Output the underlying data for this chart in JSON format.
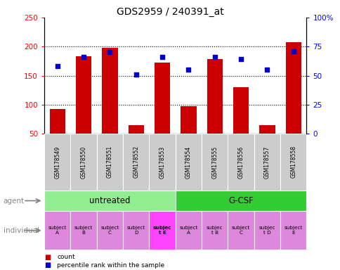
{
  "title": "GDS2959 / 240391_at",
  "samples": [
    "GSM178549",
    "GSM178550",
    "GSM178551",
    "GSM178552",
    "GSM178553",
    "GSM178554",
    "GSM178555",
    "GSM178556",
    "GSM178557",
    "GSM178558"
  ],
  "counts": [
    93,
    183,
    198,
    65,
    172,
    97,
    178,
    130,
    65,
    207
  ],
  "percentile_ranks": [
    58,
    66,
    70,
    51,
    66,
    55,
    66,
    64,
    55,
    71
  ],
  "ylim_left": [
    50,
    250
  ],
  "ylim_right": [
    0,
    100
  ],
  "yticks_left": [
    50,
    100,
    150,
    200,
    250
  ],
  "yticks_right": [
    0,
    25,
    50,
    75,
    100
  ],
  "ytick_labels_right": [
    "0",
    "25",
    "50",
    "75",
    "100%"
  ],
  "agent_groups": [
    {
      "label": "untreated",
      "start": 0,
      "end": 5,
      "color": "#90ee90"
    },
    {
      "label": "G-CSF",
      "start": 5,
      "end": 10,
      "color": "#33cc33"
    }
  ],
  "individuals": [
    {
      "label": "subject\nA",
      "sample_idx": 0,
      "bold": false
    },
    {
      "label": "subject\nB",
      "sample_idx": 1,
      "bold": false
    },
    {
      "label": "subject\nC",
      "sample_idx": 2,
      "bold": false
    },
    {
      "label": "subject\nD",
      "sample_idx": 3,
      "bold": false
    },
    {
      "label": "subjec\nt E",
      "sample_idx": 4,
      "bold": true
    },
    {
      "label": "subject\nA",
      "sample_idx": 5,
      "bold": false
    },
    {
      "label": "subjec\nt B",
      "sample_idx": 6,
      "bold": false
    },
    {
      "label": "subject\nC",
      "sample_idx": 7,
      "bold": false
    },
    {
      "label": "subjec\nt D",
      "sample_idx": 8,
      "bold": false
    },
    {
      "label": "subject\nE",
      "sample_idx": 9,
      "bold": false
    }
  ],
  "bar_color": "#cc0000",
  "dot_color": "#0000cc",
  "bar_width": 0.6,
  "sample_bg_color": "#cccccc",
  "legend_items": [
    {
      "label": "count",
      "color": "#cc0000"
    },
    {
      "label": "percentile rank within the sample",
      "color": "#0000cc"
    }
  ],
  "agent_label": "agent",
  "individual_label": "individual",
  "label_color": "#888888",
  "individual_bg_color": "#dd88dd",
  "individual_bold_bg_color": "#ff44ff"
}
